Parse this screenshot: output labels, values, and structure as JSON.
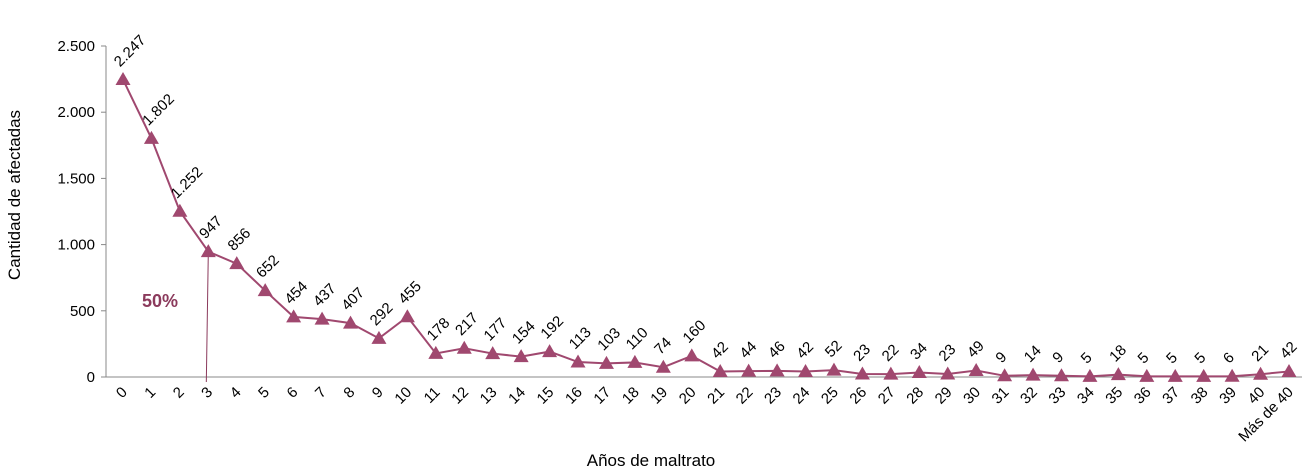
{
  "chart_data": {
    "type": "line",
    "categories": [
      "0",
      "1",
      "2",
      "3",
      "4",
      "5",
      "6",
      "7",
      "8",
      "9",
      "10",
      "11",
      "12",
      "13",
      "14",
      "15",
      "16",
      "17",
      "18",
      "19",
      "20",
      "21",
      "22",
      "23",
      "24",
      "25",
      "26",
      "27",
      "28",
      "29",
      "30",
      "31",
      "32",
      "33",
      "34",
      "35",
      "36",
      "37",
      "38",
      "39",
      "40",
      "Más de 40"
    ],
    "values": [
      2247,
      1802,
      1252,
      947,
      856,
      652,
      454,
      437,
      407,
      292,
      455,
      178,
      217,
      177,
      154,
      192,
      113,
      103,
      110,
      74,
      160,
      42,
      44,
      46,
      42,
      52,
      23,
      22,
      34,
      23,
      49,
      9,
      14,
      9,
      5,
      18,
      5,
      5,
      5,
      6,
      21,
      42
    ],
    "data_labels": [
      "2.247",
      "1.802",
      "1.252",
      "947",
      "856",
      "652",
      "454",
      "437",
      "407",
      "292",
      "455",
      "178",
      "217",
      "177",
      "154",
      "192",
      "113",
      "103",
      "110",
      "74",
      "160",
      "42",
      "44",
      "46",
      "42",
      "52",
      "23",
      "22",
      "34",
      "23",
      "49",
      "9",
      "14",
      "9",
      "5",
      "18",
      "5",
      "5",
      "5",
      "6",
      "21",
      "42"
    ],
    "xlabel": "Años de maltrato",
    "ylabel": "Cantidad de afectadas",
    "ylim": [
      0,
      2500
    ],
    "yticks": [
      0,
      500,
      1000,
      1500,
      2000,
      2500
    ],
    "ytick_labels": [
      "0",
      "500",
      "1.000",
      "1.500",
      "2.000",
      "2.500"
    ],
    "marker": "triangle",
    "grid": false,
    "series_color": "#a0486f",
    "annotation": {
      "text": "50%",
      "x_category": "3",
      "color": "#8b3a5c"
    }
  }
}
